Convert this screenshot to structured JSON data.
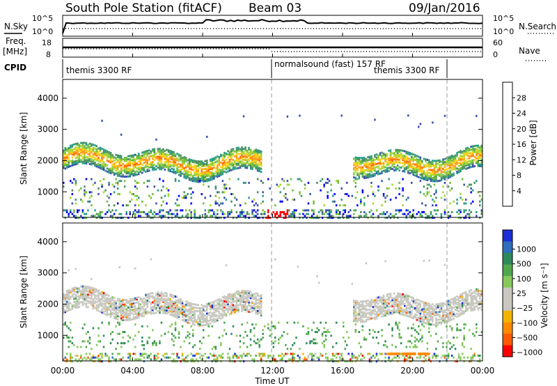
{
  "header": {
    "station": "South Pole Station (fitACF)",
    "beam": "Beam 03",
    "date": "09/Jan/2016"
  },
  "nsky_panel": {
    "label": "N.Sky",
    "left_ticks": [
      "10^5",
      "10^0"
    ],
    "right_ticks": [
      "10^5",
      "10^0"
    ],
    "right_label": "N.Search"
  },
  "freq_panel": {
    "label_line1": "Freq.",
    "label_line2": "[MHz]",
    "left_ticks": [
      "18",
      "8"
    ],
    "right_ticks": [
      "60",
      "0"
    ],
    "right_label": "Nave"
  },
  "cpid_panel": {
    "label": "CPID",
    "segments": [
      "themis 3300 RF",
      "normalsound (fast) 157 RF",
      "themis 3300 RF"
    ]
  },
  "power_panel": {
    "ylabel": "Slant Range [km]",
    "yticks": [
      "1000",
      "2000",
      "3000",
      "4000"
    ],
    "colorbar_label": "Power [dB]",
    "colorbar_ticks": [
      "4",
      "8",
      "12",
      "16",
      "20",
      "24",
      "28"
    ],
    "colors": [
      "#0000ff",
      "#3b4fb0",
      "#2a9d8a",
      "#4d8f5e",
      "#6fbf40",
      "#a8d63a",
      "#ffd21a",
      "#ff9a1a",
      "#ff6a00",
      "#ff3a00",
      "#ff0000"
    ]
  },
  "velocity_panel": {
    "ylabel": "Slant Range [km]",
    "yticks": [
      "1000",
      "2000",
      "3000",
      "4000"
    ],
    "colorbar_label": "Velocity [m s⁻¹]",
    "colorbar_ticks": [
      "1000",
      "500",
      "100",
      "25",
      "−25",
      "−100",
      "−500",
      "−1000"
    ],
    "colors": [
      "#1a2fd6",
      "#2d6fbd",
      "#2e8a5a",
      "#4fa84f",
      "#86c95a",
      "#c8c8c0",
      "#c8c8c0",
      "#f2b400",
      "#ff8a00",
      "#ff5a00",
      "#ff0000"
    ]
  },
  "xaxis": {
    "ticks": [
      "00:00",
      "04:00",
      "08:00",
      "12:00",
      "16:00",
      "20:00",
      "00:00"
    ],
    "label": "Time UT"
  },
  "chart_data": [
    {
      "type": "line",
      "name": "nsky",
      "x_hours": [
        0,
        1,
        2,
        3,
        4,
        5,
        6,
        7,
        8,
        9,
        10,
        11,
        12,
        13,
        14,
        15,
        16,
        17,
        18,
        19,
        20,
        21,
        22,
        23,
        24
      ],
      "ylim": [
        "10^0",
        "10^5"
      ]
    },
    {
      "type": "heatmap",
      "name": "power",
      "ylabel": "Slant Range [km]",
      "ylim": [
        180,
        4600
      ],
      "xlim": [
        "00:00",
        "24:00"
      ],
      "zlabel": "Power [dB]",
      "zlim": [
        0,
        30
      ],
      "bands": [
        {
          "t_start": 0.0,
          "t_end": 11.3,
          "range_km": 2000,
          "approx_power_db": 14
        },
        {
          "t_start": 16.5,
          "t_end": 24.0,
          "range_km": 2000,
          "approx_power_db": 18
        },
        {
          "t_start": 11.5,
          "t_end": 12.8,
          "range_km": 300,
          "approx_power_db": 28
        }
      ]
    },
    {
      "type": "heatmap",
      "name": "velocity",
      "ylabel": "Slant Range [km]",
      "ylim": [
        180,
        4600
      ],
      "xlim": [
        "00:00",
        "24:00"
      ],
      "zlabel": "Velocity [m s⁻¹]",
      "zlim": [
        -1000,
        1000
      ],
      "bands": [
        {
          "t_start": 0.0,
          "t_end": 10.5,
          "range_km": 2000,
          "approx_velocity": 0
        },
        {
          "t_start": 16.5,
          "t_end": 24.0,
          "range_km": 2000,
          "approx_velocity": 0
        },
        {
          "t_start": 18.5,
          "t_end": 21.0,
          "range_km": 450,
          "approx_velocity": -300
        }
      ]
    }
  ]
}
